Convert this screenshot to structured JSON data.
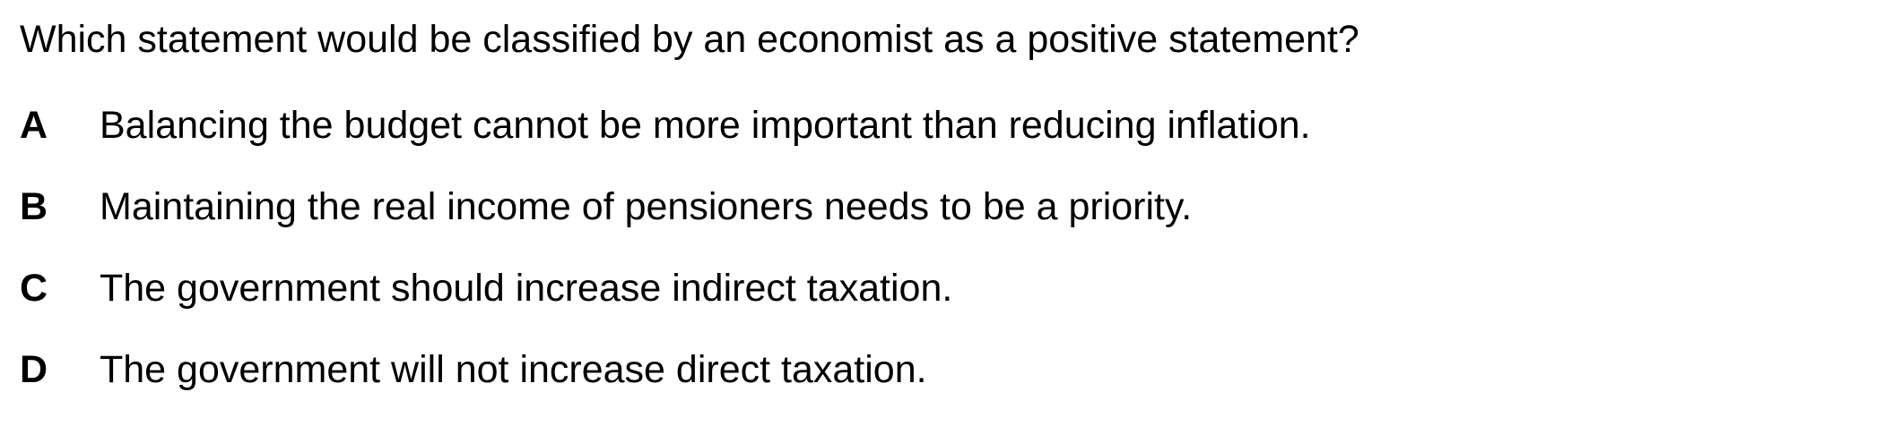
{
  "question": {
    "text": "Which statement would be classified by an economist as a positive statement?"
  },
  "options": [
    {
      "letter": "A",
      "text": "Balancing the budget cannot be more important than reducing inflation."
    },
    {
      "letter": "B",
      "text": "Maintaining the real income of pensioners needs to be a priority."
    },
    {
      "letter": "C",
      "text": "The government should increase indirect taxation."
    },
    {
      "letter": "D",
      "text": "The government will not increase direct taxation."
    }
  ]
}
